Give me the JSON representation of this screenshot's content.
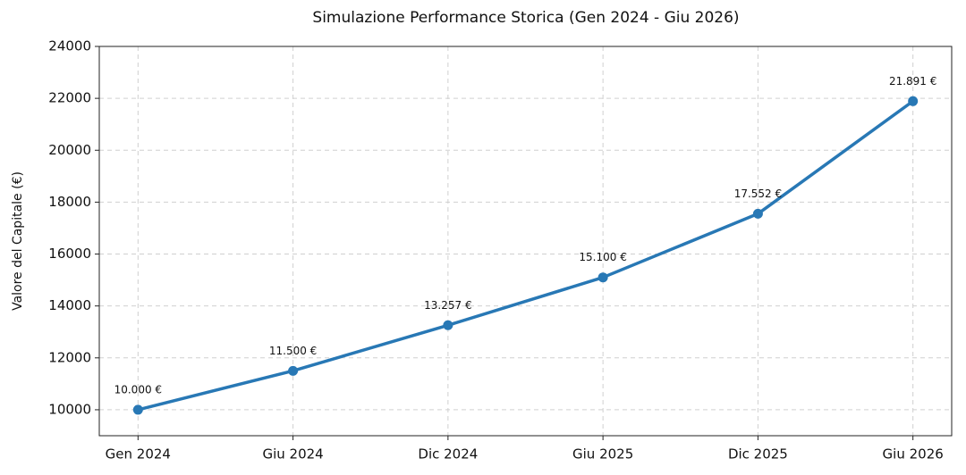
{
  "chart_data": {
    "type": "line",
    "title": "Simulazione Performance Storica (Gen 2024 - Giu 2026)",
    "ylabel": "Valore del Capitale (€)",
    "categories": [
      "Gen 2024",
      "Giu 2024",
      "Dic 2024",
      "Giu 2025",
      "Dic 2025",
      "Giu 2026"
    ],
    "values": [
      10000,
      11500,
      13257,
      15100,
      17552,
      21891
    ],
    "value_labels": [
      "10.000 €",
      "11.500 €",
      "13.257 €",
      "15.100 €",
      "17.552 €",
      "21.891 €"
    ],
    "color": "#2878b5",
    "ylim": [
      9000,
      24000
    ],
    "yticks": [
      10000,
      12000,
      14000,
      16000,
      18000,
      20000,
      22000,
      24000
    ],
    "grid": true
  }
}
